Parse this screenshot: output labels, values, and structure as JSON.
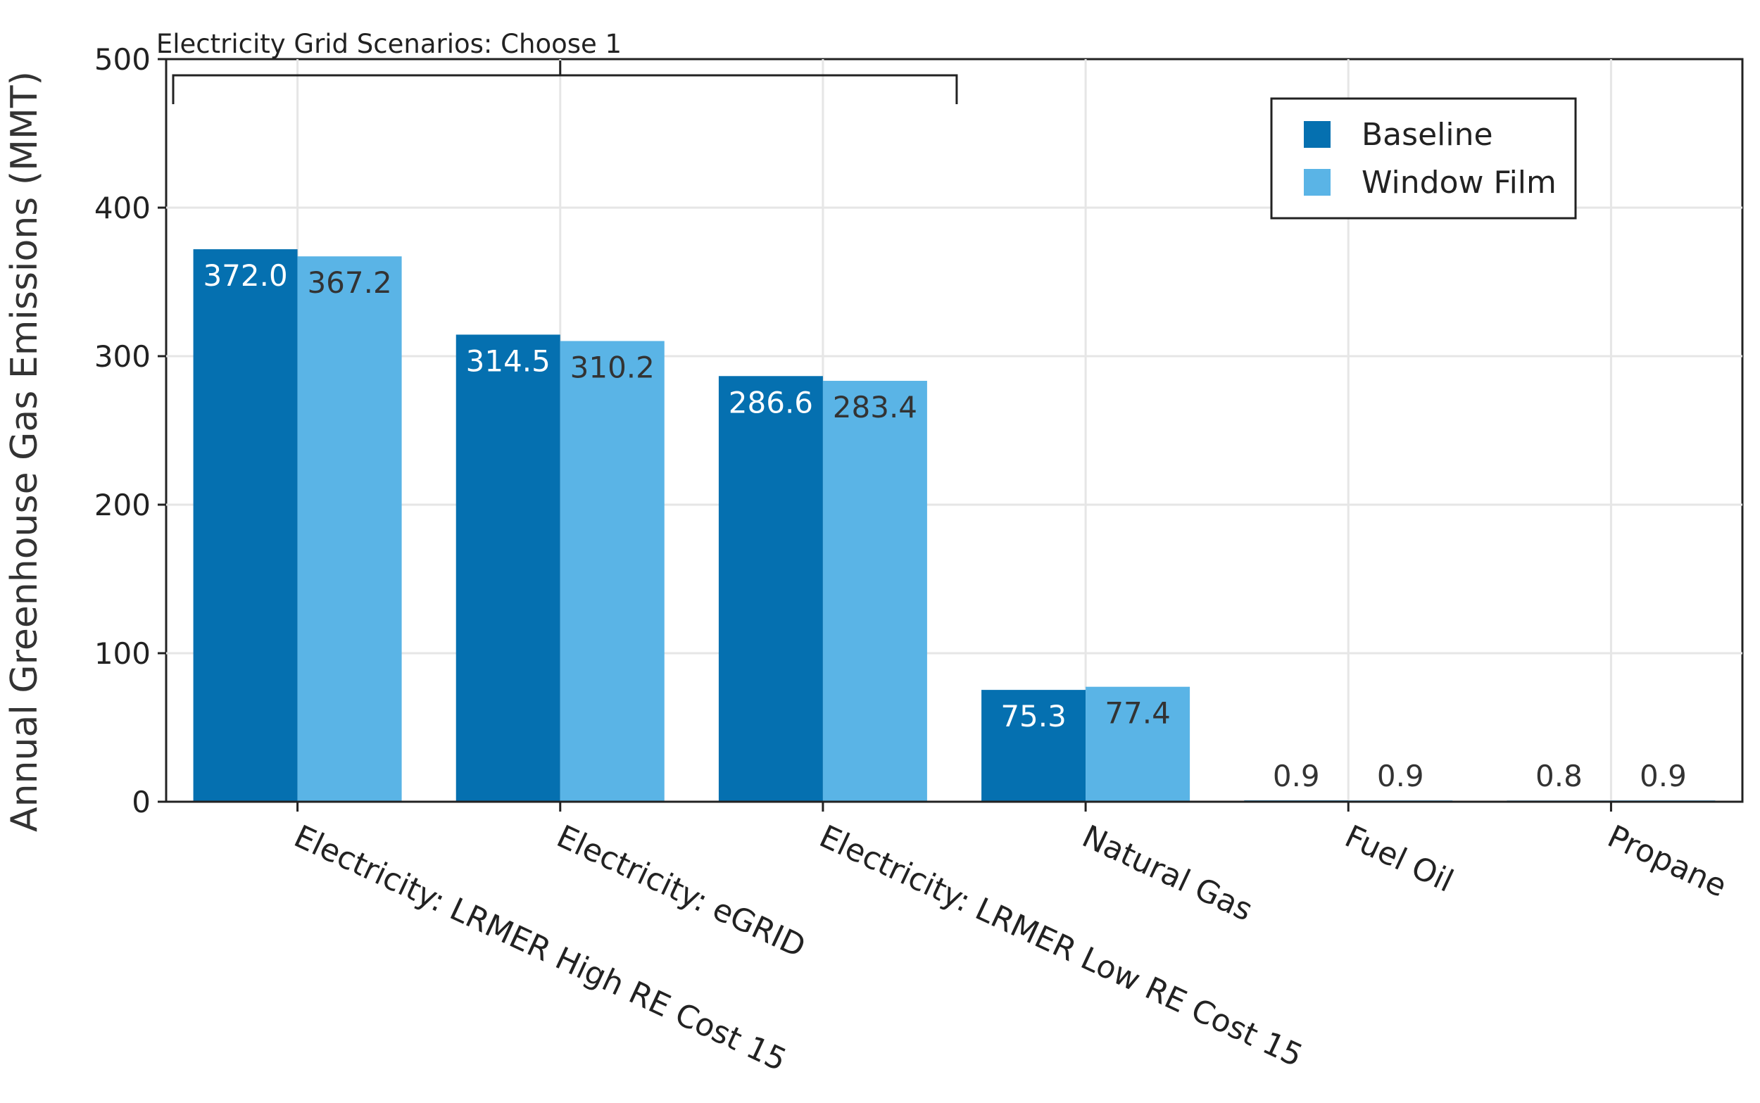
{
  "chart_data": {
    "type": "bar",
    "title": "",
    "xlabel": "",
    "ylabel": "Annual Greenhouse Gas Emissions (MMT)",
    "ylim": [
      0,
      500
    ],
    "yticks": [
      0,
      100,
      200,
      300,
      400,
      500
    ],
    "grid": true,
    "legend_position": "top-right",
    "categories": [
      "Electricity: LRMER High RE Cost 15",
      "Electricity: eGRID",
      "Electricity: LRMER Low RE Cost 15",
      "Natural Gas",
      "Fuel Oil",
      "Propane"
    ],
    "series": [
      {
        "name": "Baseline",
        "color": "#0570b0",
        "label_color": "#ffffff",
        "values": [
          372.0,
          314.5,
          286.6,
          75.3,
          0.9,
          0.8
        ],
        "labels": [
          "372.0",
          "314.5",
          "286.6",
          "75.3",
          "0.9",
          "0.8"
        ]
      },
      {
        "name": "Window Film",
        "color": "#5ab4e6",
        "label_color": "#333333",
        "values": [
          367.2,
          310.2,
          283.4,
          77.4,
          0.9,
          0.9
        ],
        "labels": [
          "367.2",
          "310.2",
          "283.4",
          "77.4",
          "0.9",
          "0.9"
        ]
      }
    ],
    "annotation": {
      "text": "Electricity Grid Scenarios: Choose 1",
      "spans_categories": [
        0,
        2
      ]
    }
  }
}
